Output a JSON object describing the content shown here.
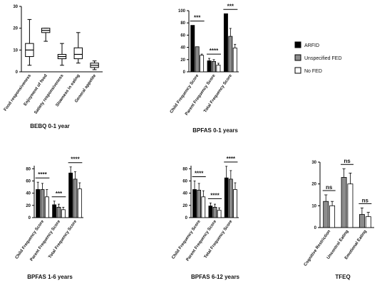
{
  "chart_data": [
    {
      "type": "box",
      "title": "BEBQ 0-1 year",
      "ylim": [
        0,
        30
      ],
      "yticks": [
        0,
        10,
        20,
        30
      ],
      "categories": [
        "Food responsiveness",
        "Enjoyment of food",
        "Satiety responsiveness",
        "Slowness in eating",
        "General appetite"
      ],
      "boxes": [
        {
          "min": 3,
          "q1": 7,
          "median": 10,
          "q3": 13,
          "max": 24
        },
        {
          "min": 14,
          "q1": 18,
          "median": 19,
          "q3": 20,
          "max": 20
        },
        {
          "min": 3,
          "q1": 6,
          "median": 7,
          "q3": 8,
          "max": 13
        },
        {
          "min": 4,
          "q1": 6,
          "median": 8,
          "q3": 11,
          "max": 18
        },
        {
          "min": 1,
          "q1": 2,
          "median": 3,
          "q3": 4,
          "max": 5
        }
      ]
    },
    {
      "type": "bar",
      "title": "BPFAS 0-1 years",
      "ylim": [
        0,
        100
      ],
      "yticks": [
        0,
        20,
        40,
        60,
        80,
        100
      ],
      "categories": [
        "Child Frequency Score",
        "Parent Frequency Score",
        "Total Frequency Score"
      ],
      "series": [
        {
          "name": "ARFID",
          "values": [
            76,
            18,
            95
          ],
          "errors": [
            0,
            4,
            0
          ]
        },
        {
          "name": "Unspecified FED",
          "values": [
            41,
            17,
            58
          ],
          "errors": [
            0,
            3,
            13
          ]
        },
        {
          "name": "No FED",
          "values": [
            27,
            11,
            39
          ],
          "errors": [
            2,
            3,
            6
          ]
        }
      ],
      "significance": [
        {
          "group": 0,
          "label": "***"
        },
        {
          "group": 1,
          "label": "****"
        },
        {
          "group": 2,
          "label": "***"
        }
      ]
    },
    {
      "type": "bar",
      "title": "BPFAS 1-6 years",
      "ylim": [
        0,
        85
      ],
      "yticks": [
        0,
        20,
        40,
        60,
        80
      ],
      "categories": [
        "Child Frequency Score",
        "Parent Frequency Score",
        "Total Frequency Score"
      ],
      "series": [
        {
          "name": "ARFID",
          "values": [
            46,
            21,
            73
          ],
          "errors": [
            12,
            6,
            10
          ]
        },
        {
          "name": "Unspecified FED",
          "values": [
            46,
            17,
            63
          ],
          "errors": [
            10,
            5,
            12
          ]
        },
        {
          "name": "No FED",
          "values": [
            34,
            13,
            47
          ],
          "errors": [
            12,
            4,
            10
          ]
        }
      ],
      "significance": [
        {
          "group": 0,
          "label": "****"
        },
        {
          "group": 1,
          "label": "***"
        },
        {
          "group": 2,
          "label": "****"
        }
      ]
    },
    {
      "type": "bar",
      "title": "BPFAS 6-12 years",
      "ylim": [
        0,
        85
      ],
      "yticks": [
        0,
        20,
        40,
        60,
        80
      ],
      "categories": [
        "Child Frequency Score",
        "Parent Frequency Score",
        "Total Frequency Score"
      ],
      "series": [
        {
          "name": "ARFID",
          "values": [
            46,
            19,
            65
          ],
          "errors": [
            14,
            5,
            19
          ]
        },
        {
          "name": "Unspecified FED",
          "values": [
            45,
            17,
            63
          ],
          "errors": [
            11,
            5,
            14
          ]
        },
        {
          "name": "No FED",
          "values": [
            34,
            12,
            46
          ],
          "errors": [
            10,
            4,
            11
          ]
        }
      ],
      "significance": [
        {
          "group": 0,
          "label": "****"
        },
        {
          "group": 1,
          "label": "****"
        },
        {
          "group": 2,
          "label": "****"
        }
      ]
    },
    {
      "type": "bar",
      "title": "TFEQ",
      "ylim": [
        0,
        30
      ],
      "yticks": [
        0,
        10,
        20,
        30
      ],
      "categories": [
        "Cognitive Restriction",
        "Uncontrol Eating",
        "Emotional Eating"
      ],
      "series": [
        {
          "name": "Unspecified FED",
          "values": [
            12,
            23,
            6
          ],
          "errors": [
            3,
            4,
            3
          ]
        },
        {
          "name": "No FED",
          "values": [
            10,
            20,
            5
          ],
          "errors": [
            2,
            5,
            2
          ]
        }
      ],
      "significance": [
        {
          "group": 0,
          "label": "ns"
        },
        {
          "group": 1,
          "label": "ns"
        },
        {
          "group": 2,
          "label": "ns"
        }
      ]
    }
  ],
  "legend": {
    "items": [
      {
        "name": "ARFID",
        "color": "#000000"
      },
      {
        "name": "Unspecified FED",
        "color": "#8c8c8c"
      },
      {
        "name": "No FED",
        "color": "#ffffff"
      }
    ]
  },
  "colors": {
    "ARFID": "#000000",
    "Unspecified FED": "#8c8c8c",
    "No FED": "#ffffff"
  }
}
